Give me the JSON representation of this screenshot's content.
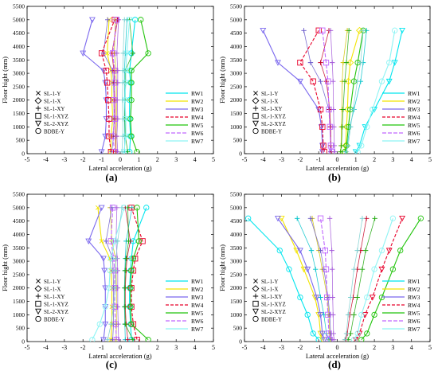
{
  "panels_common": {
    "xlabel": "Lateral acceleration (g)",
    "ylabel": "Floor hight (mm)",
    "xlim": [
      -5,
      5
    ],
    "ylim": [
      0,
      5500
    ],
    "xticks": [
      "-5",
      "-4",
      "-3",
      "-2",
      "-1",
      "0",
      "1",
      "2",
      "3",
      "4",
      "5"
    ],
    "yticks": [
      "0",
      "500",
      "1000",
      "1500",
      "2000",
      "2500",
      "3000",
      "3500",
      "4000",
      "4500",
      "5000",
      "5500"
    ]
  },
  "series_colors": {
    "RW1": "#00e5ee",
    "RW2": "#f2e400",
    "RW3": "#7b68ee",
    "RW4": "#e8002a",
    "RW5": "#22c40c",
    "RW6": "#c066ff",
    "RW7": "#8ef4f4"
  },
  "chart_data": [
    {
      "label": "(a)",
      "type": "line",
      "legend_rw": [
        "RW1",
        "RW2",
        "RW3",
        "RW4",
        "RW5",
        "RW6",
        "RW7"
      ],
      "legend_markers": [
        {
          "marker": "x",
          "text": "SL-1-Y"
        },
        {
          "marker": "diamond",
          "text": "SL-1-X"
        },
        {
          "marker": "plus",
          "text": "SL-1-XY"
        },
        {
          "marker": "square",
          "text": "SL-1-XYZ"
        },
        {
          "marker": "triangle-down",
          "text": "SL-2-XYZ"
        },
        {
          "marker": "circle",
          "text": "BDBE-Y"
        }
      ],
      "heights": [
        70,
        650,
        1300,
        2000,
        2650,
        3100,
        3750,
        5000
      ],
      "series": [
        {
          "name": "RW1",
          "marker": "circle",
          "side": "pos",
          "values": [
            0.5,
            0.55,
            0.5,
            0.5,
            0.55,
            0.5,
            0.6,
            0.8
          ]
        },
        {
          "name": "RW2",
          "marker": "x",
          "side": "neg",
          "values": [
            -0.5,
            -0.5,
            -0.4,
            -0.45,
            -0.45,
            -0.5,
            -0.7,
            -0.6
          ]
        },
        {
          "name": "RW3",
          "marker": "triangle-down",
          "side": "neg",
          "values": [
            -1.0,
            -0.8,
            -0.75,
            -0.75,
            -0.8,
            -0.9,
            -2.0,
            -1.5
          ]
        },
        {
          "name": "RW4",
          "marker": "square",
          "side": "neg",
          "values": [
            -0.5,
            -0.6,
            -0.6,
            -0.65,
            -0.7,
            -0.75,
            -1.0,
            -0.3
          ]
        },
        {
          "name": "RW5",
          "marker": "circle",
          "side": "pos",
          "values": [
            0.9,
            0.6,
            0.55,
            0.6,
            0.6,
            0.6,
            1.5,
            1.1
          ]
        },
        {
          "name": "RW6",
          "marker": "square",
          "side": "neg",
          "values": [
            -0.3,
            -0.4,
            -0.3,
            -0.35,
            -0.3,
            -0.3,
            -0.4,
            -0.2
          ]
        },
        {
          "name": "RW7",
          "marker": "triangle-down",
          "side": "pos",
          "values": [
            0.2,
            0.3,
            0.3,
            0.25,
            0.3,
            0.3,
            0.35,
            0.5
          ]
        }
      ]
    },
    {
      "label": "(b)",
      "type": "line",
      "legend_rw": [
        "RW1",
        "RW2",
        "RW3",
        "RW4",
        "RW5",
        "RW6",
        "RW7"
      ],
      "legend_markers": [
        {
          "marker": "x",
          "text": "SL-1-Y"
        },
        {
          "marker": "diamond",
          "text": "SL-1-X"
        },
        {
          "marker": "plus",
          "text": "SL-1-XY"
        },
        {
          "marker": "square",
          "text": "SL-1-XYZ"
        },
        {
          "marker": "triangle-down",
          "text": "SL-2-XYZ"
        },
        {
          "marker": "circle",
          "text": "BDBE-Y"
        }
      ],
      "heights": [
        70,
        300,
        1000,
        1650,
        2700,
        3400,
        4600
      ],
      "series": [
        {
          "name": "RW1",
          "marker": "triangle-down",
          "side": "pos",
          "values": [
            1.0,
            1.2,
            1.5,
            2.0,
            2.8,
            3.1,
            3.5
          ]
        },
        {
          "name": "RW2",
          "marker": "diamond",
          "side": "pos",
          "values": [
            0.4,
            0.45,
            0.5,
            0.55,
            0.6,
            0.7,
            1.2
          ]
        },
        {
          "name": "RW3",
          "marker": "triangle-down",
          "side": "neg",
          "values": [
            -0.8,
            -0.8,
            -0.85,
            -1.0,
            -2.0,
            -3.2,
            -4.0
          ]
        },
        {
          "name": "RW4",
          "marker": "square",
          "side": "neg",
          "values": [
            -0.7,
            -0.75,
            -0.8,
            -0.9,
            -1.3,
            -2.0,
            -1.0
          ]
        },
        {
          "name": "RW5",
          "marker": "circle",
          "side": "pos",
          "values": [
            0.4,
            0.5,
            0.6,
            0.7,
            0.9,
            1.1,
            1.4
          ]
        },
        {
          "name": "RW6",
          "marker": "square",
          "side": "neg",
          "values": [
            -0.3,
            -0.35,
            -0.4,
            -0.45,
            -0.5,
            -0.6,
            -0.8
          ]
        },
        {
          "name": "RW7",
          "marker": "circle",
          "side": "pos",
          "values": [
            1.1,
            1.3,
            1.6,
            1.9,
            2.4,
            2.8,
            3.1
          ]
        }
      ]
    },
    {
      "label": "(c)",
      "type": "line",
      "legend_rw": [
        "RW1",
        "RW2",
        "RW3",
        "RW4",
        "RW5",
        "RW6",
        "RW7"
      ],
      "legend_markers": [
        {
          "marker": "x",
          "text": "SL-1-Y"
        },
        {
          "marker": "diamond",
          "text": "SL-1-X"
        },
        {
          "marker": "plus",
          "text": "SL-1-XY"
        },
        {
          "marker": "square",
          "text": "SL-1-XYZ"
        },
        {
          "marker": "triangle-down",
          "text": "SL-2-XYZ"
        },
        {
          "marker": "circle",
          "text": "BDBE-Y"
        }
      ],
      "heights": [
        70,
        650,
        1300,
        2000,
        2650,
        3100,
        3750,
        5000
      ],
      "series": [
        {
          "name": "RW1",
          "marker": "circle",
          "side": "pos",
          "values": [
            0.6,
            0.55,
            0.5,
            0.5,
            0.55,
            0.6,
            0.7,
            1.4
          ]
        },
        {
          "name": "RW2",
          "marker": "x",
          "side": "neg",
          "values": [
            -0.5,
            -0.45,
            -0.45,
            -0.45,
            -0.5,
            -0.55,
            -1.0,
            -1.2
          ]
        },
        {
          "name": "RW3",
          "marker": "triangle-down",
          "side": "neg",
          "values": [
            -0.9,
            -0.8,
            -0.8,
            -0.8,
            -0.85,
            -0.9,
            -1.7,
            -1.0
          ]
        },
        {
          "name": "RW4",
          "marker": "square",
          "side": "pos",
          "values": [
            0.9,
            0.7,
            0.6,
            0.6,
            0.7,
            0.8,
            1.2,
            0.6
          ]
        },
        {
          "name": "RW5",
          "marker": "circle",
          "side": "pos",
          "values": [
            1.5,
            0.6,
            0.55,
            0.55,
            0.6,
            0.7,
            1.0,
            0.9
          ]
        },
        {
          "name": "RW6",
          "marker": "square",
          "side": "neg",
          "values": [
            -0.2,
            -0.25,
            -0.3,
            -0.3,
            -0.3,
            -0.35,
            -0.5,
            -0.4
          ]
        },
        {
          "name": "RW7",
          "marker": "circle",
          "side": "neg",
          "values": [
            -1.5,
            -1.1,
            -0.8,
            -0.6,
            -0.55,
            -0.5,
            -0.3,
            0.2
          ]
        }
      ]
    },
    {
      "label": "(d)",
      "type": "line",
      "legend_rw": [
        "RW1",
        "RW2",
        "RW3",
        "RW4",
        "RW5",
        "RW6",
        "RW7"
      ],
      "legend_markers": [
        {
          "marker": "x",
          "text": "SL-1-Y"
        },
        {
          "marker": "diamond",
          "text": "SL-1-X"
        },
        {
          "marker": "plus",
          "text": "SL-1-XY"
        },
        {
          "marker": "square",
          "text": "SL-1-XYZ"
        },
        {
          "marker": "triangle-down",
          "text": "SL-2-XYZ"
        },
        {
          "marker": "circle",
          "text": "BDBE-Y"
        }
      ],
      "heights": [
        70,
        300,
        1000,
        1650,
        2700,
        3400,
        4600
      ],
      "series": [
        {
          "name": "RW1",
          "marker": "circle",
          "side": "neg",
          "values": [
            -1.0,
            -1.3,
            -1.6,
            -2.0,
            -2.6,
            -3.1,
            -4.8
          ]
        },
        {
          "name": "RW2",
          "marker": "triangle-down",
          "side": "neg",
          "values": [
            -0.8,
            -0.9,
            -1.0,
            -1.2,
            -1.8,
            -2.2,
            -3.0
          ]
        },
        {
          "name": "RW3",
          "marker": "triangle-down",
          "side": "neg",
          "values": [
            -0.7,
            -0.8,
            -0.9,
            -1.1,
            -1.6,
            -2.0,
            -3.2
          ]
        },
        {
          "name": "RW4",
          "marker": "triangle-down",
          "side": "pos",
          "values": [
            1.0,
            1.2,
            1.5,
            1.9,
            2.4,
            2.8,
            3.5
          ]
        },
        {
          "name": "RW5",
          "marker": "circle",
          "side": "pos",
          "values": [
            1.3,
            1.6,
            2.0,
            2.4,
            3.0,
            3.4,
            4.5
          ]
        },
        {
          "name": "RW6",
          "marker": "square",
          "side": "neg",
          "values": [
            -0.4,
            -0.45,
            -0.5,
            -0.55,
            -0.6,
            -0.65,
            -0.9
          ]
        },
        {
          "name": "RW7",
          "marker": "circle",
          "side": "pos",
          "values": [
            0.9,
            1.1,
            1.3,
            1.6,
            2.0,
            2.4,
            3.0
          ]
        }
      ]
    }
  ]
}
